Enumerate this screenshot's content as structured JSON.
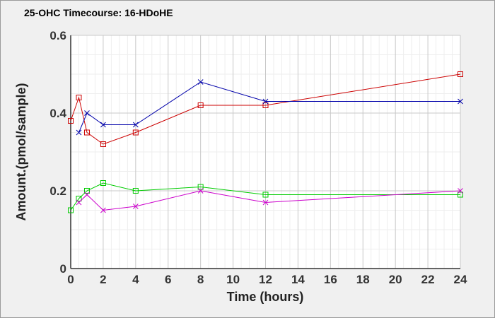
{
  "chart_data": {
    "type": "line",
    "title": "25-OHC Timecourse: 16-HDoHE",
    "xlabel": "Time (hours)",
    "ylabel": "Amount.(pmol/sample)",
    "xlim": [
      0,
      24
    ],
    "ylim": [
      0,
      0.6
    ],
    "x_ticks": [
      "0",
      "2",
      "4",
      "6",
      "8",
      "10",
      "12",
      "14",
      "16",
      "18",
      "20",
      "22",
      "24"
    ],
    "y_ticks": [
      "0",
      "0.2",
      "0.4",
      "0.6"
    ],
    "grid": true,
    "series": [
      {
        "color": "#cc0000",
        "marker": "square",
        "points": [
          [
            0,
            0.38
          ],
          [
            0.5,
            0.44
          ],
          [
            1,
            0.35
          ],
          [
            2,
            0.32
          ],
          [
            4,
            0.35
          ],
          [
            8,
            0.42
          ],
          [
            12,
            0.42
          ],
          [
            24,
            0.5
          ]
        ]
      },
      {
        "color": "#0000aa",
        "marker": "x",
        "points": [
          [
            0.5,
            0.35
          ],
          [
            1,
            0.4
          ],
          [
            2,
            0.37
          ],
          [
            4,
            0.37
          ],
          [
            8,
            0.48
          ],
          [
            12,
            0.43
          ],
          [
            24,
            0.43
          ]
        ]
      },
      {
        "color": "#00cc00",
        "marker": "square",
        "points": [
          [
            0,
            0.15
          ],
          [
            0.5,
            0.18
          ],
          [
            1,
            0.2
          ],
          [
            2,
            0.22
          ],
          [
            4,
            0.2
          ],
          [
            8,
            0.21
          ],
          [
            12,
            0.19
          ],
          [
            24,
            0.19
          ]
        ]
      },
      {
        "color": "#cc00cc",
        "marker": "x",
        "points": [
          [
            0.5,
            0.17
          ],
          [
            1,
            0.19
          ],
          [
            2,
            0.15
          ],
          [
            4,
            0.16
          ],
          [
            8,
            0.2
          ],
          [
            12,
            0.17
          ],
          [
            24,
            0.2
          ]
        ]
      }
    ]
  }
}
